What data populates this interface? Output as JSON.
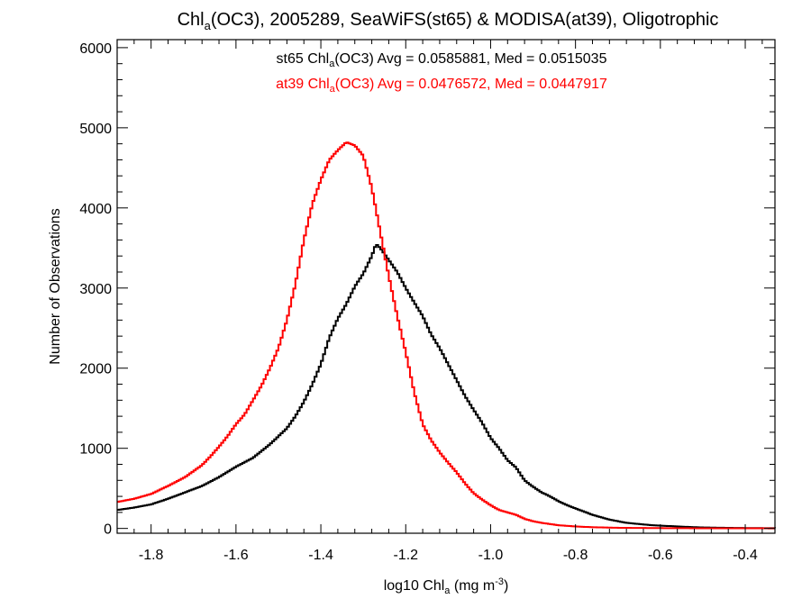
{
  "chart_data": {
    "type": "line",
    "title": {
      "pre": "Chl",
      "sub": "a",
      "post": "(OC3), 2005289, SeaWiFS(st65) & MODISA(at39), Oligotrophic"
    },
    "xlabel": {
      "pre": "log10 Chl",
      "sub": "a",
      "mid": " (mg m",
      "sup": "-3",
      "post": ")"
    },
    "ylabel": "Number of Observations",
    "xlim": [
      -1.88,
      -0.33
    ],
    "ylim": [
      -60,
      6100
    ],
    "x_ticks": [
      -1.8,
      -1.6,
      -1.4,
      -1.2,
      -1.0,
      -0.8,
      -0.6,
      -0.4
    ],
    "x_tick_labels": [
      "-1.8",
      "-1.6",
      "-1.4",
      "-1.2",
      "-1.0",
      "-0.8",
      "-0.6",
      "-0.4"
    ],
    "y_ticks": [
      0,
      1000,
      2000,
      3000,
      4000,
      5000,
      6000
    ],
    "y_tick_labels": [
      "0",
      "1000",
      "2000",
      "3000",
      "4000",
      "5000",
      "6000"
    ],
    "annotations": [
      {
        "series": "st65",
        "color": "#000000",
        "pre": "st65 Chl",
        "sub": "a",
        "post": "(OC3) Avg = 0.0585881, Med = 0.0515035"
      },
      {
        "series": "at39",
        "color": "#ff0000",
        "pre": "at39 Chl",
        "sub": "a",
        "post": "(OC3) Avg = 0.0476572, Med = 0.0447917"
      }
    ],
    "series": [
      {
        "name": "st65",
        "color": "#000000",
        "style": "step",
        "points": [
          [
            -1.88,
            230
          ],
          [
            -1.84,
            260
          ],
          [
            -1.8,
            300
          ],
          [
            -1.76,
            370
          ],
          [
            -1.72,
            450
          ],
          [
            -1.68,
            530
          ],
          [
            -1.64,
            640
          ],
          [
            -1.6,
            770
          ],
          [
            -1.56,
            880
          ],
          [
            -1.52,
            1050
          ],
          [
            -1.48,
            1250
          ],
          [
            -1.46,
            1400
          ],
          [
            -1.44,
            1580
          ],
          [
            -1.42,
            1800
          ],
          [
            -1.4,
            2050
          ],
          [
            -1.38,
            2380
          ],
          [
            -1.36,
            2620
          ],
          [
            -1.34,
            2800
          ],
          [
            -1.32,
            3020
          ],
          [
            -1.3,
            3180
          ],
          [
            -1.28,
            3400
          ],
          [
            -1.27,
            3550
          ],
          [
            -1.26,
            3500
          ],
          [
            -1.24,
            3350
          ],
          [
            -1.22,
            3200
          ],
          [
            -1.2,
            3000
          ],
          [
            -1.18,
            2820
          ],
          [
            -1.16,
            2650
          ],
          [
            -1.14,
            2420
          ],
          [
            -1.12,
            2250
          ],
          [
            -1.1,
            2050
          ],
          [
            -1.08,
            1850
          ],
          [
            -1.06,
            1650
          ],
          [
            -1.04,
            1480
          ],
          [
            -1.02,
            1320
          ],
          [
            -1.0,
            1130
          ],
          [
            -0.98,
            1000
          ],
          [
            -0.96,
            850
          ],
          [
            -0.94,
            760
          ],
          [
            -0.92,
            600
          ],
          [
            -0.9,
            520
          ],
          [
            -0.88,
            450
          ],
          [
            -0.86,
            400
          ],
          [
            -0.84,
            340
          ],
          [
            -0.82,
            290
          ],
          [
            -0.8,
            250
          ],
          [
            -0.78,
            210
          ],
          [
            -0.76,
            170
          ],
          [
            -0.74,
            140
          ],
          [
            -0.72,
            110
          ],
          [
            -0.7,
            90
          ],
          [
            -0.68,
            70
          ],
          [
            -0.66,
            60
          ],
          [
            -0.62,
            40
          ],
          [
            -0.58,
            30
          ],
          [
            -0.54,
            20
          ],
          [
            -0.5,
            12
          ],
          [
            -0.45,
            8
          ],
          [
            -0.4,
            5
          ],
          [
            -0.33,
            3
          ]
        ]
      },
      {
        "name": "at39",
        "color": "#ff0000",
        "style": "step",
        "points": [
          [
            -1.88,
            330
          ],
          [
            -1.84,
            370
          ],
          [
            -1.8,
            430
          ],
          [
            -1.76,
            530
          ],
          [
            -1.72,
            640
          ],
          [
            -1.68,
            790
          ],
          [
            -1.66,
            900
          ],
          [
            -1.64,
            1020
          ],
          [
            -1.62,
            1150
          ],
          [
            -1.6,
            1300
          ],
          [
            -1.58,
            1420
          ],
          [
            -1.56,
            1600
          ],
          [
            -1.54,
            1780
          ],
          [
            -1.52,
            2000
          ],
          [
            -1.5,
            2250
          ],
          [
            -1.48,
            2600
          ],
          [
            -1.46,
            3050
          ],
          [
            -1.44,
            3600
          ],
          [
            -1.42,
            4050
          ],
          [
            -1.4,
            4350
          ],
          [
            -1.38,
            4600
          ],
          [
            -1.36,
            4720
          ],
          [
            -1.34,
            4820
          ],
          [
            -1.32,
            4780
          ],
          [
            -1.3,
            4650
          ],
          [
            -1.28,
            4250
          ],
          [
            -1.26,
            3700
          ],
          [
            -1.24,
            3150
          ],
          [
            -1.22,
            2650
          ],
          [
            -1.2,
            2200
          ],
          [
            -1.18,
            1700
          ],
          [
            -1.16,
            1300
          ],
          [
            -1.14,
            1100
          ],
          [
            -1.12,
            950
          ],
          [
            -1.1,
            820
          ],
          [
            -1.08,
            700
          ],
          [
            -1.06,
            560
          ],
          [
            -1.04,
            440
          ],
          [
            -1.02,
            360
          ],
          [
            -1.0,
            290
          ],
          [
            -0.98,
            230
          ],
          [
            -0.96,
            200
          ],
          [
            -0.94,
            170
          ],
          [
            -0.92,
            120
          ],
          [
            -0.9,
            90
          ],
          [
            -0.88,
            70
          ],
          [
            -0.86,
            55
          ],
          [
            -0.84,
            40
          ],
          [
            -0.8,
            25
          ],
          [
            -0.76,
            15
          ],
          [
            -0.7,
            8
          ],
          [
            -0.6,
            4
          ],
          [
            -0.5,
            2
          ],
          [
            -0.33,
            1
          ]
        ]
      }
    ]
  }
}
